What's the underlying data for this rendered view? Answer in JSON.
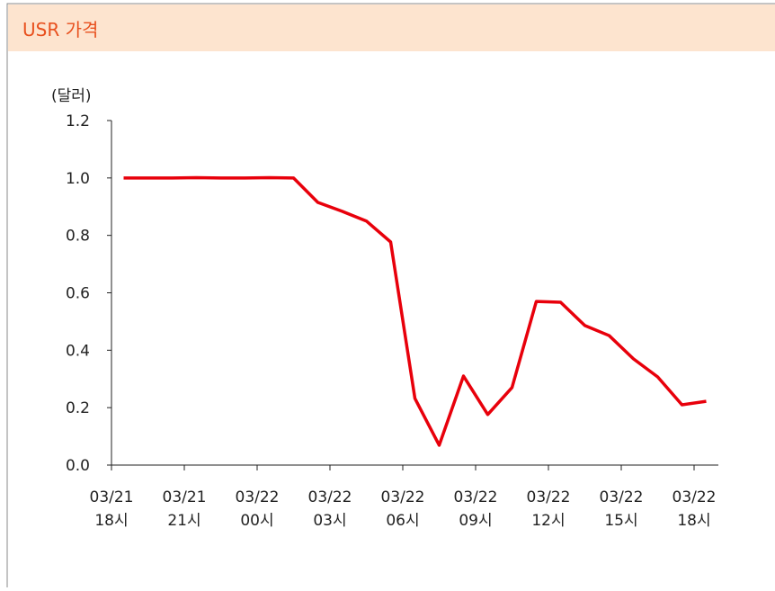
{
  "header": {
    "title": "USR 가격"
  },
  "chart_data": {
    "type": "line",
    "ylabel": "(달러)",
    "x": [
      0.5,
      1.5,
      2.5,
      3.5,
      4.5,
      5.5,
      6.5,
      7.5,
      8.5,
      9.5,
      10.5,
      11.5,
      12.5,
      13.5,
      14.5,
      15.5,
      16.5,
      17.5,
      18.5,
      19.5,
      20.5,
      21.5,
      22.5,
      23.5,
      24.5
    ],
    "series": [
      {
        "name": "USR",
        "color": "#e8000b",
        "values": [
          1.0,
          1.0,
          1.0,
          1.001,
          1.0,
          1.0,
          1.001,
          1.0,
          0.915,
          0.884,
          0.85,
          0.777,
          0.232,
          0.069,
          0.31,
          0.176,
          0.27,
          0.57,
          0.567,
          0.486,
          0.451,
          0.37,
          0.307,
          0.21,
          0.222
        ]
      }
    ],
    "xlim": [
      0,
      25
    ],
    "xticks": [
      {
        "value": 0,
        "label": "03/21 18시"
      },
      {
        "value": 3,
        "label": "03/21 21시"
      },
      {
        "value": 6,
        "label": "03/22 00시"
      },
      {
        "value": 9,
        "label": "03/22 03시"
      },
      {
        "value": 12,
        "label": "03/22 06시"
      },
      {
        "value": 15,
        "label": "03/22 09시"
      },
      {
        "value": 18,
        "label": "03/22 12시"
      },
      {
        "value": 21,
        "label": "03/22 15시"
      },
      {
        "value": 24,
        "label": "03/22 18시"
      }
    ],
    "ylim": [
      0,
      1.2
    ],
    "yticks": [
      {
        "value": 0,
        "label": "0.0"
      },
      0.2,
      0.4,
      0.6,
      0.8,
      {
        "value": 1,
        "label": "1.0"
      },
      1.2
    ],
    "grid": false
  }
}
